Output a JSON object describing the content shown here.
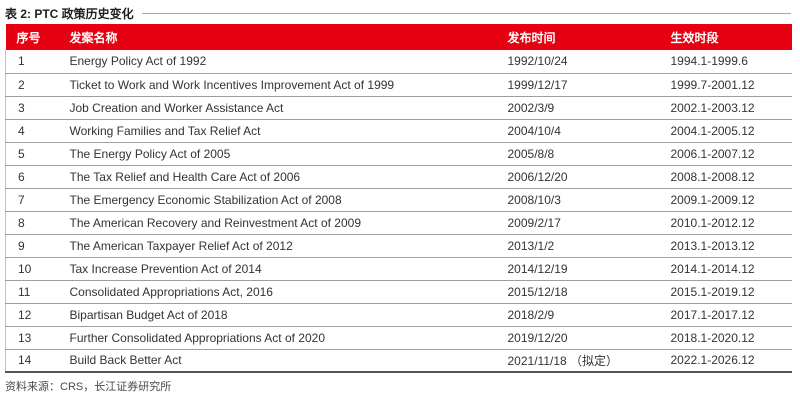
{
  "table_meta": {
    "title": "表 2: PTC 政策历史变化",
    "source": "资料来源：CRS，长江证券研究所"
  },
  "colors": {
    "header_bg": "#e60012",
    "header_text": "#ffffff",
    "body_text": "#333333",
    "row_separator": "#9e9e9e",
    "table_bottom_border": "#555555"
  },
  "columns": [
    "序号",
    "发案名称",
    "发布时间",
    "生效时段"
  ],
  "rows": [
    {
      "no": "1",
      "name": "Energy Policy Act of 1992",
      "published": "1992/10/24",
      "effective": "1994.1-1999.6"
    },
    {
      "no": "2",
      "name": "Ticket to Work and Work Incentives Improvement Act of 1999",
      "published": "1999/12/17",
      "effective": "1999.7-2001.12"
    },
    {
      "no": "3",
      "name": "Job Creation and Worker Assistance Act",
      "published": "2002/3/9",
      "effective": "2002.1-2003.12"
    },
    {
      "no": "4",
      "name": "Working Families and Tax Relief Act",
      "published": "2004/10/4",
      "effective": "2004.1-2005.12"
    },
    {
      "no": "5",
      "name": "The Energy Policy Act of 2005",
      "published": "2005/8/8",
      "effective": "2006.1-2007.12"
    },
    {
      "no": "6",
      "name": "The Tax Relief and Health Care Act of 2006",
      "published": "2006/12/20",
      "effective": "2008.1-2008.12"
    },
    {
      "no": "7",
      "name": "The Emergency Economic Stabilization Act of 2008",
      "published": "2008/10/3",
      "effective": "2009.1-2009.12"
    },
    {
      "no": "8",
      "name": "The American Recovery and Reinvestment Act of 2009",
      "published": "2009/2/17",
      "effective": "2010.1-2012.12"
    },
    {
      "no": "9",
      "name": "The American Taxpayer Relief Act of 2012",
      "published": "2013/1/2",
      "effective": "2013.1-2013.12"
    },
    {
      "no": "10",
      "name": "Tax Increase Prevention Act of 2014",
      "published": "2014/12/19",
      "effective": "2014.1-2014.12"
    },
    {
      "no": "11",
      "name": "Consolidated Appropriations Act, 2016",
      "published": "2015/12/18",
      "effective": "2015.1-2019.12"
    },
    {
      "no": "12",
      "name": "Bipartisan Budget Act of 2018",
      "published": "2018/2/9",
      "effective": "2017.1-2017.12"
    },
    {
      "no": "13",
      "name": "Further Consolidated Appropriations Act of 2020",
      "published": "2019/12/20",
      "effective": "2018.1-2020.12"
    },
    {
      "no": "14",
      "name": "Build Back Better Act",
      "published": "2021/11/18 （拟定）",
      "effective": "2022.1-2026.12"
    }
  ]
}
